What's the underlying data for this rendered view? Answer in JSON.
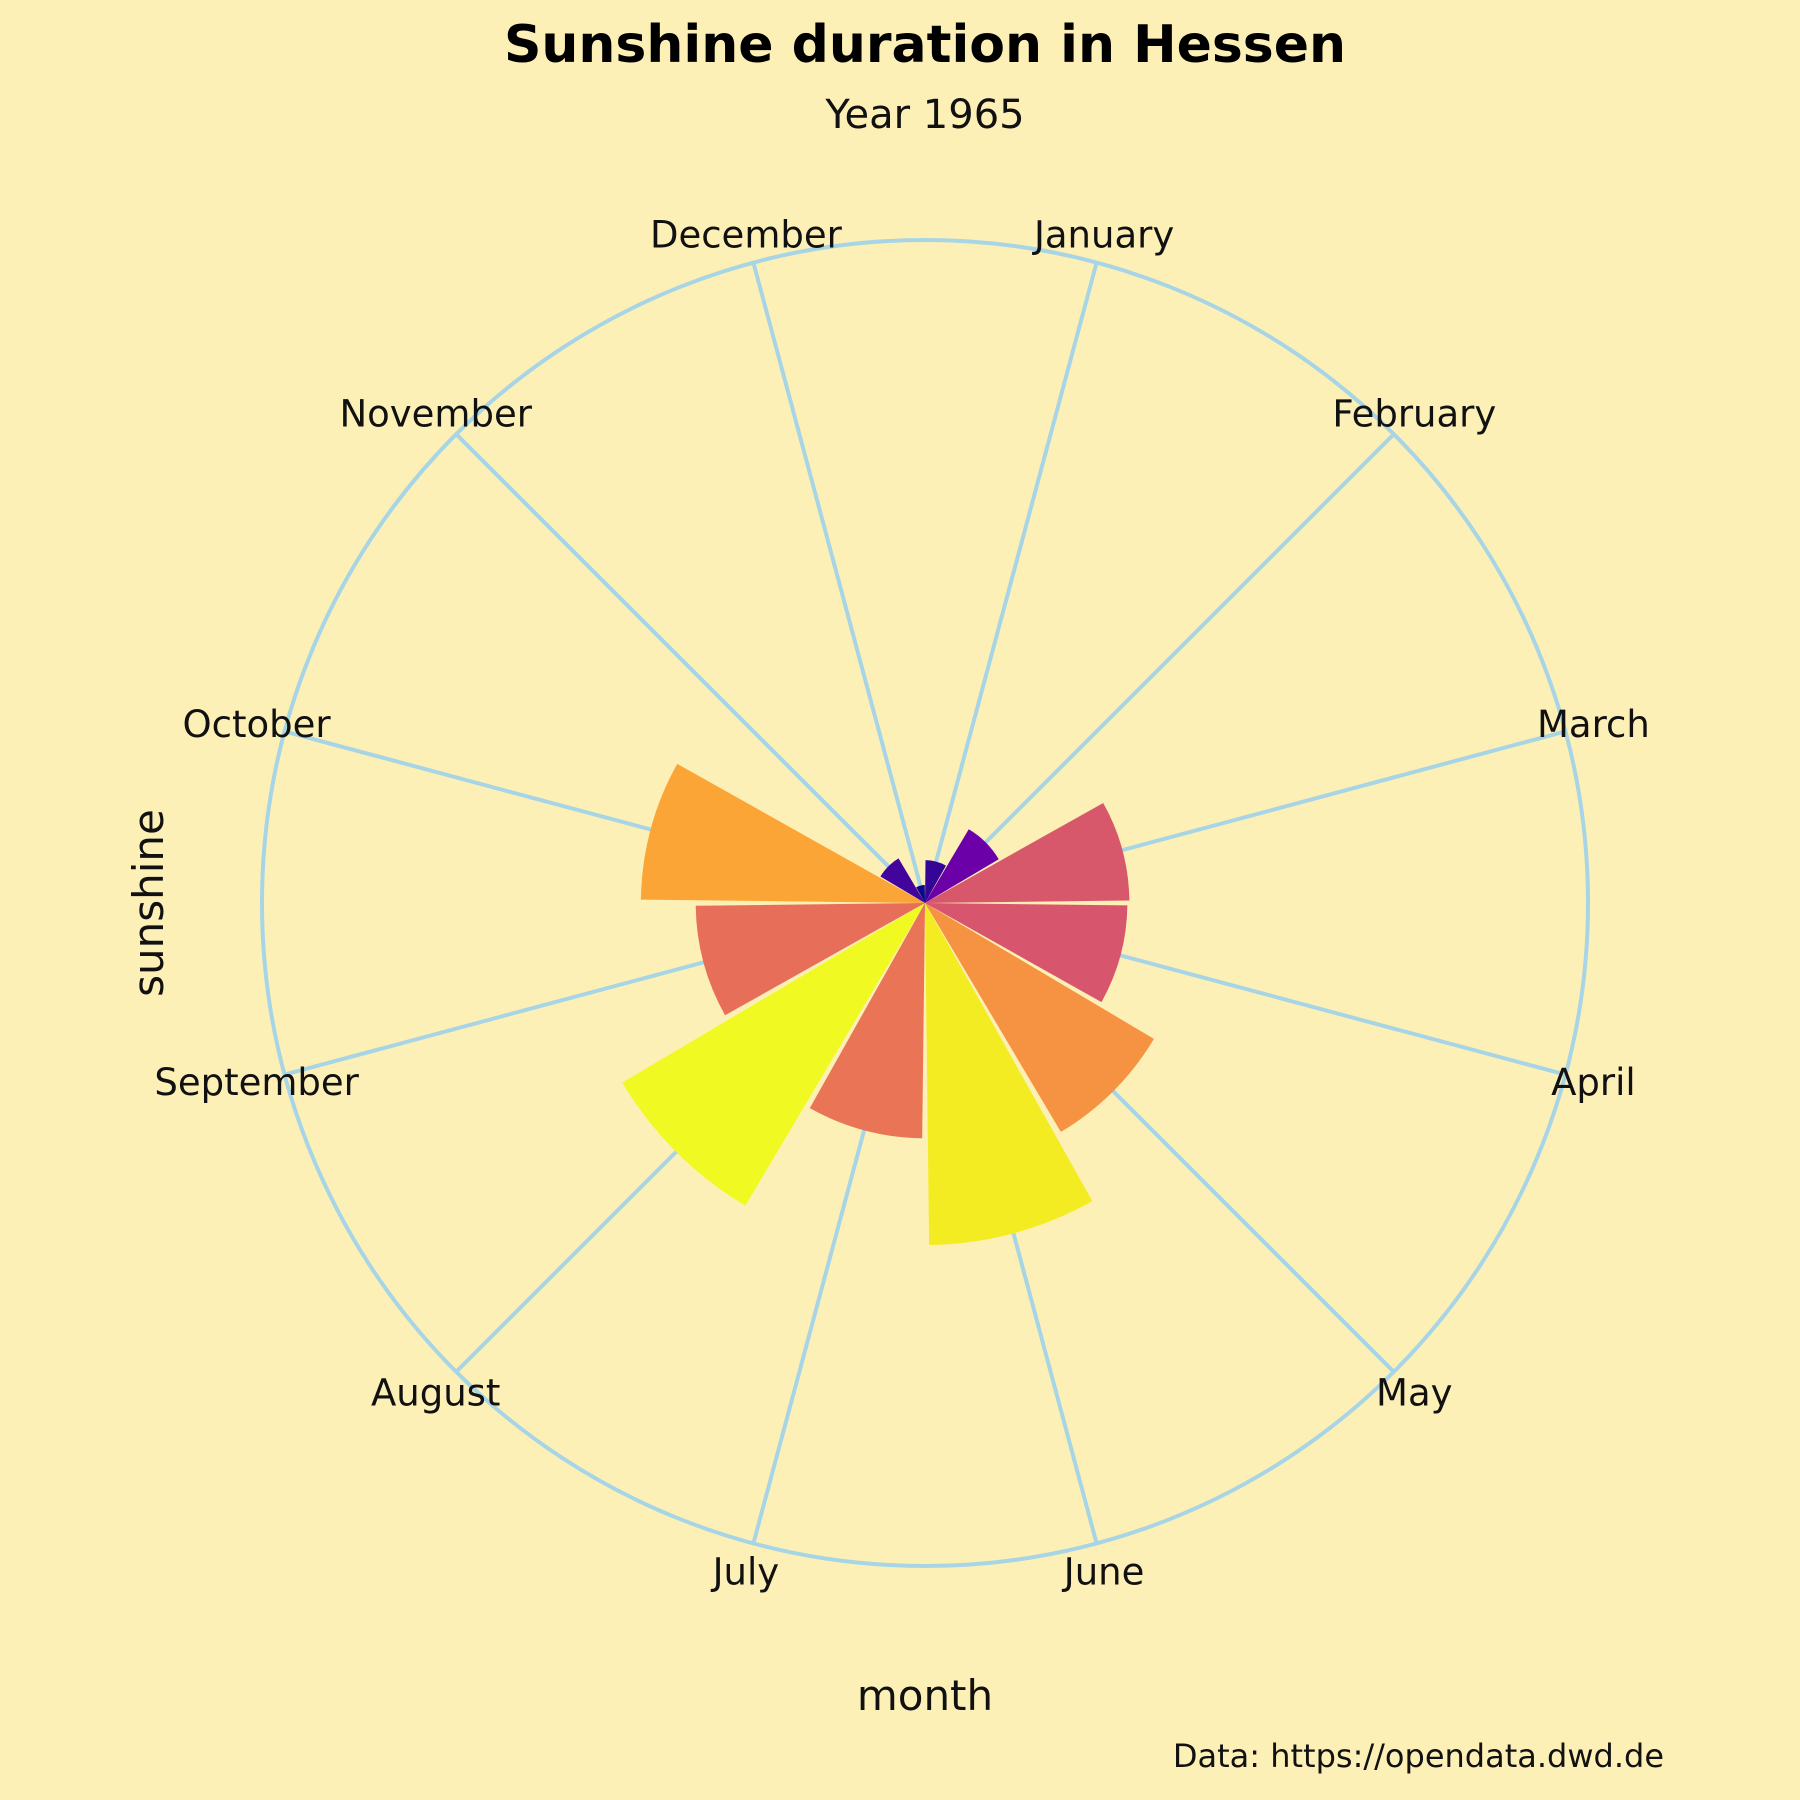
{
  "chart_data": {
    "type": "bar",
    "subtype": "polar",
    "title": "Sunshine duration in Hessen",
    "subtitle": "Year 1965",
    "xlabel": "month",
    "ylabel": "sunshine",
    "caption": "Data: https://opendata.dwd.de",
    "categories": [
      "January",
      "February",
      "March",
      "April",
      "May",
      "June",
      "July",
      "August",
      "September",
      "October",
      "November",
      "December"
    ],
    "values": [
      43,
      86,
      205,
      203,
      267,
      343,
      236,
      353,
      230,
      285,
      52,
      18
    ],
    "ylim": [
      0,
      665
    ],
    "grid": true,
    "legend": "none",
    "colorscale": "plasma"
  },
  "colors": {
    "background": "#fdf0b7",
    "grid": "#a8d5e6",
    "text": "#111111"
  }
}
